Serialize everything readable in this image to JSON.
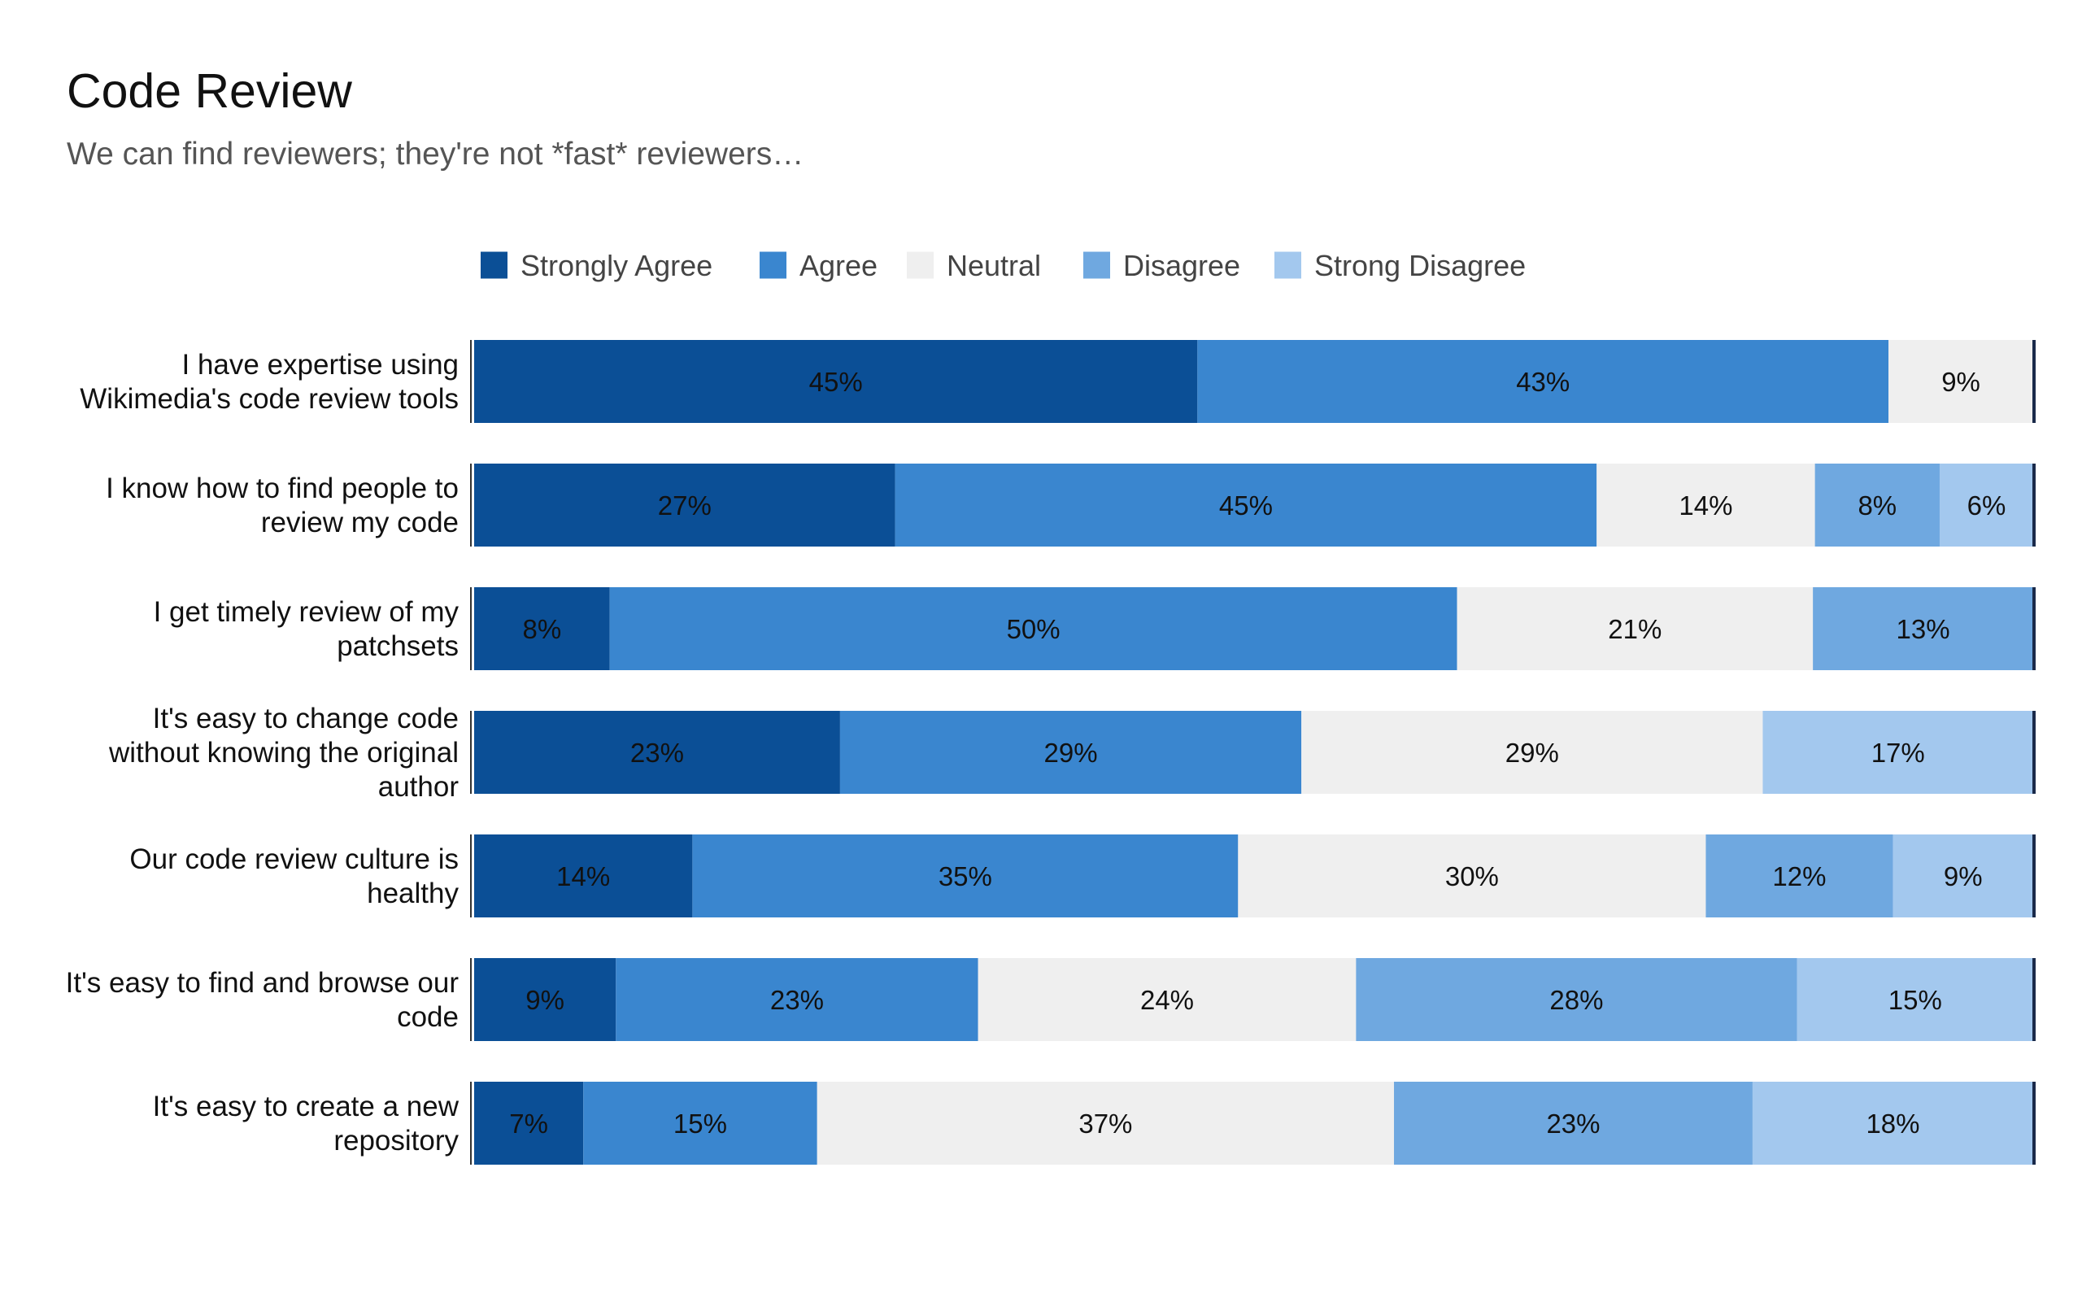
{
  "chart_data": {
    "type": "bar",
    "stacked": true,
    "orientation": "horizontal",
    "title": "Code Review",
    "subtitle": "We can find reviewers; they're not *fast* reviewers…",
    "legend_position": "top",
    "series": [
      {
        "name": "Strongly Agree",
        "color": "#0b4f96",
        "values": [
          45,
          27,
          8,
          23,
          14,
          9,
          7
        ]
      },
      {
        "name": "Agree",
        "color": "#3a86cf",
        "values": [
          43,
          45,
          50,
          29,
          35,
          23,
          15
        ]
      },
      {
        "name": "Neutral",
        "color": "#efefef",
        "values": [
          9,
          14,
          21,
          29,
          30,
          24,
          37
        ]
      },
      {
        "name": "Disagree",
        "color": "#6fa8e0",
        "values": [
          null,
          8,
          13,
          null,
          12,
          28,
          23
        ]
      },
      {
        "name": "Strong Disagree",
        "color": "#a3c8ee",
        "values": [
          null,
          6,
          null,
          17,
          9,
          15,
          18
        ]
      }
    ],
    "categories": [
      [
        "I have expertise using",
        "Wikimedia's code review tools"
      ],
      [
        "I know how to find people to",
        "review my code"
      ],
      [
        "I get timely review of my",
        "patchsets"
      ],
      [
        "It's easy to change code",
        "without knowing the original",
        "author"
      ],
      [
        "Our code review culture is",
        "healthy"
      ],
      [
        "It's easy to find and browse our",
        "code"
      ],
      [
        "It's easy to create a new",
        "repository"
      ]
    ],
    "value_suffix": "%"
  }
}
